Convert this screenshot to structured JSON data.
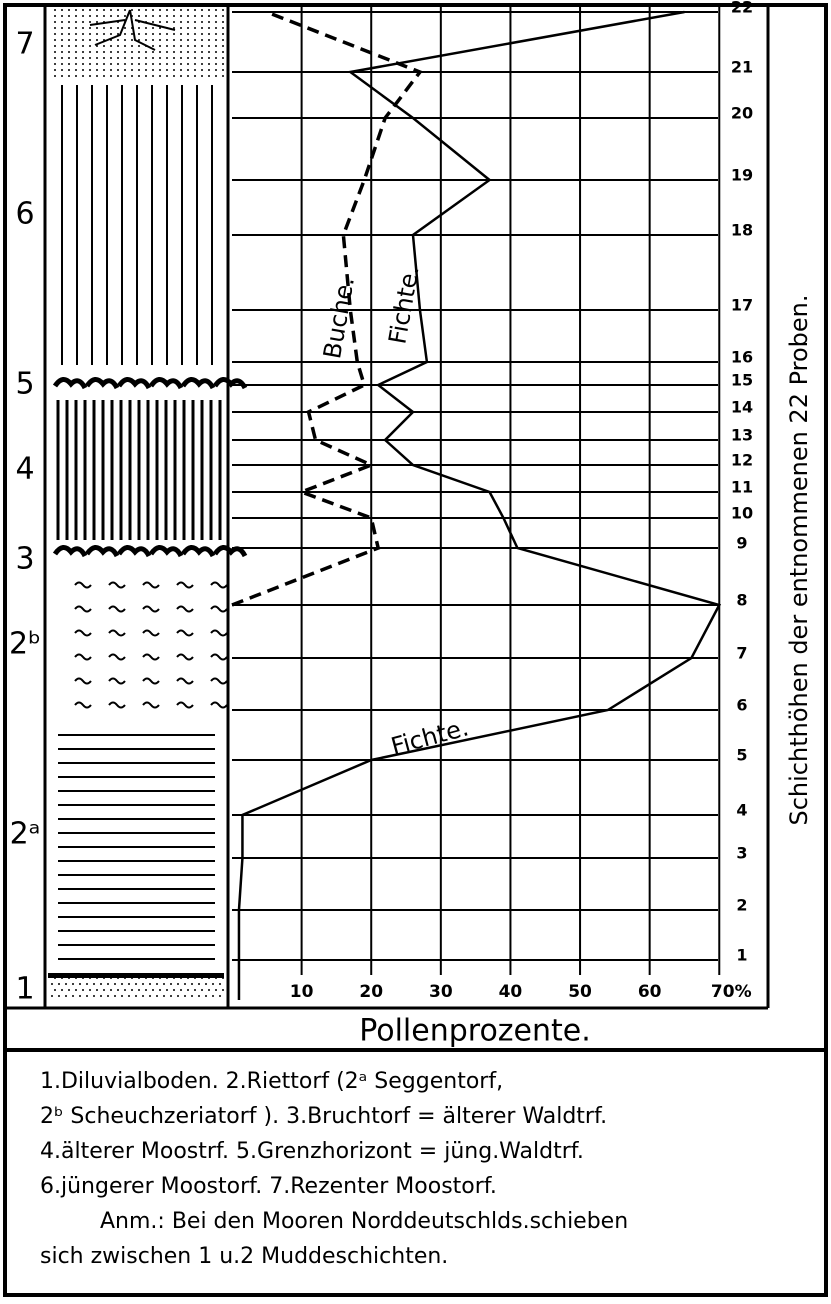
{
  "chart_data": {
    "type": "line",
    "title": "Pollenprozente.",
    "y_axis_label": "Schichthöhen der entnommenen 22 Proben.",
    "categories": [
      "1",
      "2",
      "3",
      "4",
      "5",
      "6",
      "7",
      "8",
      "9",
      "10",
      "11",
      "12",
      "13",
      "14",
      "15",
      "16",
      "17",
      "18",
      "19",
      "20",
      "21",
      "22"
    ],
    "series": [
      {
        "name": "Fichte.",
        "color": "#000000",
        "dash": false,
        "values": [
          1,
          1,
          1.5,
          1.5,
          20,
          54,
          66,
          70,
          41,
          39,
          37,
          26,
          22,
          26,
          21,
          28,
          27,
          26,
          37,
          26,
          17,
          65
        ]
      },
      {
        "name": "Buche.",
        "color": "#000000",
        "dash": true,
        "values": [
          null,
          null,
          null,
          null,
          null,
          null,
          null,
          0,
          21,
          20,
          10,
          20,
          12,
          11,
          19,
          18,
          17,
          16,
          19,
          22,
          27,
          5
        ]
      }
    ],
    "xlim": [
      0,
      77
    ],
    "xticks": [
      10,
      20,
      30,
      40,
      50,
      60,
      {
        "value": 70,
        "label": "70%"
      }
    ],
    "grid": true,
    "layers": [
      {
        "label": "7"
      },
      {
        "label": "6"
      },
      {
        "label": "5"
      },
      {
        "label": "4"
      },
      {
        "label": "3"
      },
      {
        "label": "2ᵇ"
      },
      {
        "label": "2ᵃ"
      },
      {
        "label": "1"
      }
    ],
    "legend_lines": [
      "1.Diluvialboden.  2.Riettorf (2ᵃ Seggentorf,",
      "2ᵇ Scheuchzeriatorf ). 3.Bruchtorf = älterer Waldtrf.",
      "4.älterer Moostrf.  5.Grenzhorizont = jüng.Waldtrf.",
      "6.jüngerer Moostorf.   7.Rezenter Moostorf.",
      "Anm.: Bei den Mooren Norddeutschlds.schieben",
      "sich zwischen 1 u.2 Muddeschichten."
    ]
  }
}
